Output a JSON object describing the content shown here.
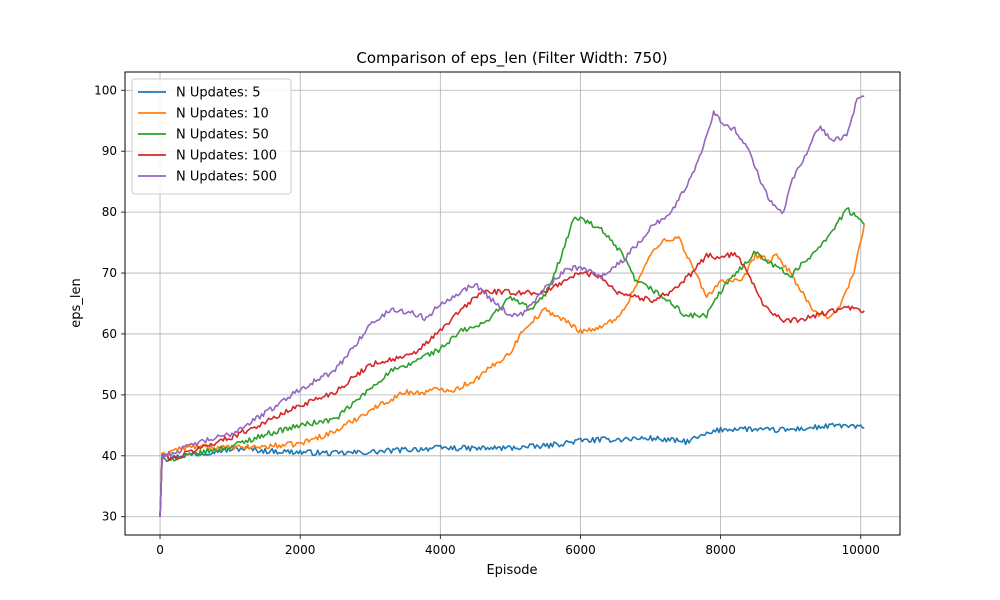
{
  "chart_data": {
    "type": "line",
    "title": "Comparison of eps_len (Filter Width: 750)",
    "xlabel": "Episode",
    "ylabel": "eps_len",
    "xlim": [
      -500,
      10560
    ],
    "ylim": [
      27,
      103
    ],
    "xticks": [
      0,
      2000,
      4000,
      6000,
      8000,
      10000
    ],
    "yticks": [
      30,
      40,
      50,
      60,
      70,
      80,
      90,
      100
    ],
    "grid": true,
    "legend_position": "top-left",
    "series": [
      {
        "name": "N Updates: 5",
        "color": "#1f77b4",
        "points": [
          [
            0,
            30
          ],
          [
            30,
            40
          ],
          [
            100,
            39.5
          ],
          [
            300,
            40
          ],
          [
            500,
            40.3
          ],
          [
            800,
            40.8
          ],
          [
            1000,
            41
          ],
          [
            1200,
            41.2
          ],
          [
            1500,
            40.8
          ],
          [
            2000,
            40.6
          ],
          [
            2500,
            40.4
          ],
          [
            3000,
            40.6
          ],
          [
            3500,
            41
          ],
          [
            4000,
            41.3
          ],
          [
            4500,
            41.2
          ],
          [
            5000,
            41.3
          ],
          [
            5500,
            41.6
          ],
          [
            6000,
            42.5
          ],
          [
            6500,
            42.7
          ],
          [
            7000,
            42.9
          ],
          [
            7500,
            42.3
          ],
          [
            8000,
            44.3
          ],
          [
            8300,
            44.5
          ],
          [
            8600,
            44.2
          ],
          [
            9000,
            44.3
          ],
          [
            9500,
            44.8
          ],
          [
            9700,
            45
          ],
          [
            10050,
            44.6
          ]
        ]
      },
      {
        "name": "N Updates: 10",
        "color": "#ff7f0e",
        "points": [
          [
            0,
            30
          ],
          [
            30,
            40
          ],
          [
            200,
            41
          ],
          [
            500,
            41.5
          ],
          [
            1000,
            41.3
          ],
          [
            1500,
            41.5
          ],
          [
            2000,
            42
          ],
          [
            2500,
            44
          ],
          [
            3000,
            47.5
          ],
          [
            3500,
            50.5
          ],
          [
            3700,
            50.3
          ],
          [
            4000,
            51
          ],
          [
            4200,
            50.8
          ],
          [
            4500,
            52.5
          ],
          [
            5000,
            57
          ],
          [
            5200,
            61
          ],
          [
            5500,
            64
          ],
          [
            5800,
            62
          ],
          [
            6000,
            60.5
          ],
          [
            6300,
            61
          ],
          [
            6600,
            63.5
          ],
          [
            7000,
            73
          ],
          [
            7200,
            75.5
          ],
          [
            7400,
            75.8
          ],
          [
            7600,
            71
          ],
          [
            7800,
            66
          ],
          [
            8000,
            68.8
          ],
          [
            8300,
            68.5
          ],
          [
            8500,
            73
          ],
          [
            8700,
            72
          ],
          [
            8800,
            72.8
          ],
          [
            9000,
            70
          ],
          [
            9300,
            64
          ],
          [
            9500,
            62.5
          ],
          [
            9700,
            64.5
          ],
          [
            9900,
            70
          ],
          [
            10050,
            78
          ]
        ]
      },
      {
        "name": "N Updates: 50",
        "color": "#2ca02c",
        "points": [
          [
            0,
            30
          ],
          [
            30,
            40
          ],
          [
            200,
            39.5
          ],
          [
            500,
            40.3
          ],
          [
            1000,
            41.5
          ],
          [
            1500,
            43.5
          ],
          [
            2000,
            45
          ],
          [
            2500,
            46
          ],
          [
            3000,
            51
          ],
          [
            3300,
            54
          ],
          [
            3500,
            54.5
          ],
          [
            3700,
            56
          ],
          [
            4000,
            57.5
          ],
          [
            4300,
            60.5
          ],
          [
            4600,
            61.5
          ],
          [
            5000,
            66
          ],
          [
            5300,
            64
          ],
          [
            5500,
            66.5
          ],
          [
            5700,
            72
          ],
          [
            5900,
            78.8
          ],
          [
            6000,
            79
          ],
          [
            6300,
            77
          ],
          [
            6600,
            73
          ],
          [
            6800,
            68.5
          ],
          [
            7000,
            67.5
          ],
          [
            7300,
            65
          ],
          [
            7500,
            63
          ],
          [
            7800,
            63
          ],
          [
            8000,
            67
          ],
          [
            8300,
            71
          ],
          [
            8500,
            73.5
          ],
          [
            8800,
            71
          ],
          [
            9000,
            69.5
          ],
          [
            9300,
            73
          ],
          [
            9600,
            77
          ],
          [
            9800,
            80.5
          ],
          [
            9950,
            79
          ],
          [
            10050,
            78
          ]
        ]
      },
      {
        "name": "N Updates: 100",
        "color": "#d62728",
        "points": [
          [
            0,
            30
          ],
          [
            30,
            40
          ],
          [
            200,
            39.5
          ],
          [
            500,
            41
          ],
          [
            1000,
            43
          ],
          [
            1500,
            45.5
          ],
          [
            2000,
            48.3
          ],
          [
            2500,
            50.5
          ],
          [
            3000,
            55
          ],
          [
            3300,
            55.8
          ],
          [
            3600,
            56.5
          ],
          [
            4000,
            60.5
          ],
          [
            4300,
            64
          ],
          [
            4600,
            67
          ],
          [
            5000,
            66.8
          ],
          [
            5500,
            66.8
          ],
          [
            5800,
            69
          ],
          [
            6000,
            70
          ],
          [
            6300,
            69.5
          ],
          [
            6500,
            67
          ],
          [
            7000,
            65.5
          ],
          [
            7300,
            67
          ],
          [
            7600,
            70
          ],
          [
            7800,
            73
          ],
          [
            8000,
            72.5
          ],
          [
            8200,
            73.2
          ],
          [
            8400,
            70
          ],
          [
            8600,
            65
          ],
          [
            8900,
            62
          ],
          [
            9200,
            62.5
          ],
          [
            9500,
            63.5
          ],
          [
            9800,
            64.3
          ],
          [
            10050,
            63.8
          ]
        ]
      },
      {
        "name": "N Updates: 500",
        "color": "#9467bd",
        "points": [
          [
            0,
            30
          ],
          [
            30,
            40
          ],
          [
            200,
            40.5
          ],
          [
            500,
            42
          ],
          [
            1000,
            43.5
          ],
          [
            1500,
            47
          ],
          [
            2000,
            51
          ],
          [
            2500,
            54
          ],
          [
            2800,
            58.5
          ],
          [
            3000,
            61.5
          ],
          [
            3300,
            64
          ],
          [
            3600,
            63.5
          ],
          [
            3800,
            62.5
          ],
          [
            4000,
            65
          ],
          [
            4300,
            67
          ],
          [
            4500,
            68.2
          ],
          [
            4700,
            66
          ],
          [
            5000,
            63
          ],
          [
            5200,
            63.5
          ],
          [
            5500,
            67.5
          ],
          [
            5800,
            70.5
          ],
          [
            6000,
            71
          ],
          [
            6300,
            69.5
          ],
          [
            6600,
            72
          ],
          [
            6800,
            74.5
          ],
          [
            7000,
            77.5
          ],
          [
            7300,
            80
          ],
          [
            7500,
            84
          ],
          [
            7700,
            89
          ],
          [
            7900,
            96.5
          ],
          [
            8000,
            95
          ],
          [
            8200,
            93.5
          ],
          [
            8400,
            90.5
          ],
          [
            8500,
            87
          ],
          [
            8700,
            82
          ],
          [
            8900,
            80
          ],
          [
            9000,
            85
          ],
          [
            9200,
            89
          ],
          [
            9400,
            94
          ],
          [
            9600,
            92
          ],
          [
            9800,
            92.5
          ],
          [
            9950,
            98.5
          ],
          [
            10050,
            99
          ]
        ]
      }
    ]
  }
}
